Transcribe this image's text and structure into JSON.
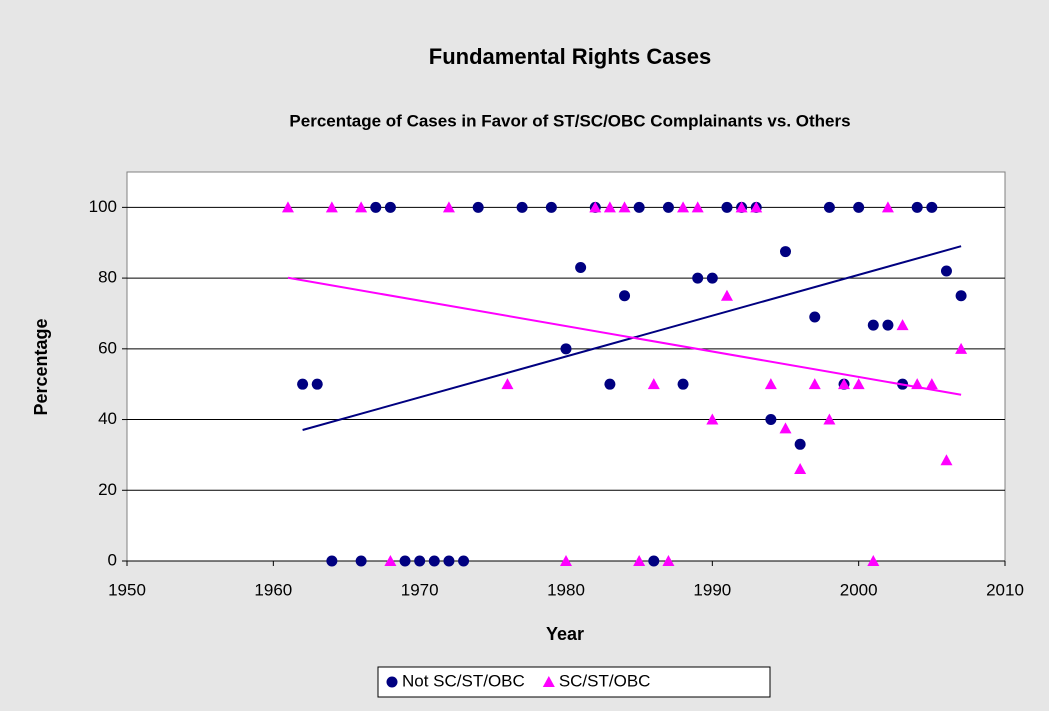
{
  "chart_data": {
    "type": "scatter",
    "title": "Fundamental Rights Cases",
    "subtitle": "Percentage of Cases in Favor of ST/SC/OBC Complainants vs. Others",
    "xlabel": "Year",
    "ylabel": "Percentage",
    "xlim": [
      1950,
      2010
    ],
    "xticks": [
      1950,
      1960,
      1970,
      1980,
      1990,
      2000,
      2010
    ],
    "ylim": [
      0,
      110
    ],
    "yticks": [
      0,
      20,
      40,
      60,
      80,
      100
    ],
    "grid": true,
    "trendline": true,
    "legend": "bottom",
    "series": [
      {
        "name": "Not SC/ST/OBC",
        "color": "#000080",
        "marker": "circle",
        "x": [
          1962,
          1963,
          1964,
          1966,
          1967,
          1968,
          1969,
          1970,
          1971,
          1972,
          1973,
          1974,
          1977,
          1979,
          1980,
          1981,
          1982,
          1983,
          1984,
          1985,
          1986,
          1987,
          1988,
          1989,
          1990,
          1991,
          1992,
          1993,
          1994,
          1995,
          1996,
          1997,
          1998,
          1999,
          2000,
          2001,
          2002,
          2003,
          2004,
          2005,
          2006,
          2007
        ],
        "values": [
          50,
          50,
          0,
          0,
          100,
          100,
          0,
          0,
          0,
          0,
          0,
          100,
          100,
          100,
          60,
          83,
          100,
          50,
          75,
          100,
          0,
          100,
          50,
          80,
          80,
          100,
          100,
          100,
          40,
          87.5,
          33,
          69,
          100,
          50,
          100,
          66.7,
          66.7,
          50,
          100,
          100,
          82,
          75
        ]
      },
      {
        "name": "SC/ST/OBC",
        "color": "#ff00ff",
        "marker": "triangle",
        "x": [
          1961,
          1964,
          1966,
          1968,
          1972,
          1976,
          1980,
          1982,
          1983,
          1984,
          1985,
          1986,
          1987,
          1988,
          1989,
          1990,
          1991,
          1992,
          1993,
          1994,
          1995,
          1996,
          1997,
          1998,
          1999,
          2000,
          2001,
          2002,
          2003,
          2004,
          2005,
          2006,
          2007
        ],
        "values": [
          100,
          100,
          100,
          0,
          100,
          50,
          0,
          100,
          100,
          100,
          0,
          50,
          0,
          100,
          100,
          40,
          75,
          100,
          100,
          50,
          37.5,
          26,
          50,
          40,
          50,
          50,
          0,
          100,
          66.7,
          50,
          50,
          28.5,
          60
        ]
      }
    ]
  }
}
